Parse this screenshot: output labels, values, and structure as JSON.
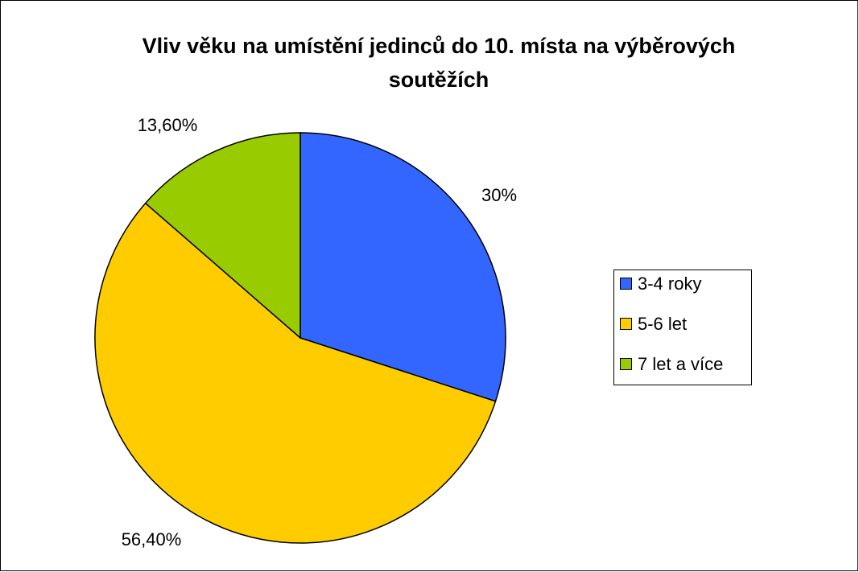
{
  "chart_data": {
    "type": "pie",
    "title": "Vliv věku na umístění jedinců do 10. místa na výběrových soutěžích",
    "categories": [
      "3-4 roky",
      "5-6 let",
      "7 let a více"
    ],
    "values": [
      30,
      56.4,
      13.6
    ],
    "value_labels": [
      "30%",
      "56,40%",
      "13,60%"
    ],
    "colors": [
      "#3366ff",
      "#ffcc00",
      "#99cc00"
    ],
    "legend": "right"
  }
}
